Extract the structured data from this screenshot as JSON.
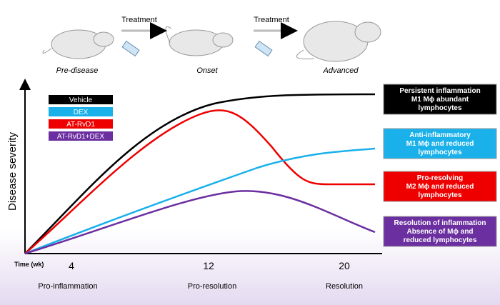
{
  "header": {
    "treatment_1": "Treatment",
    "treatment_2": "Treatment",
    "stages": [
      "Pre-disease",
      "Onset",
      "Advanced"
    ]
  },
  "legend": [
    "Vehicle",
    "DEX",
    "AT-RvD1",
    "AT-RvD1+DEX"
  ],
  "axes": {
    "y_label": "Disease severity",
    "x_label": "Time (wk)",
    "x_ticks": [
      "4",
      "12",
      "20"
    ],
    "phases": [
      "Pro-inflammation",
      "Pro-resolution",
      "Resolution"
    ]
  },
  "outcomes": [
    [
      "Persistent inflammation",
      "M1 Mϕ abundant",
      "lymphocytes"
    ],
    [
      "Anti-inflammatory",
      "M1 Mϕ and reduced",
      "lymphocytes"
    ],
    [
      "Pro-resolving",
      "M2 Mϕ and reduced",
      "lymphocytes"
    ],
    [
      "Resolution of inflammation",
      "Absence of Mϕ and",
      "reduced lymphocytes"
    ]
  ]
}
